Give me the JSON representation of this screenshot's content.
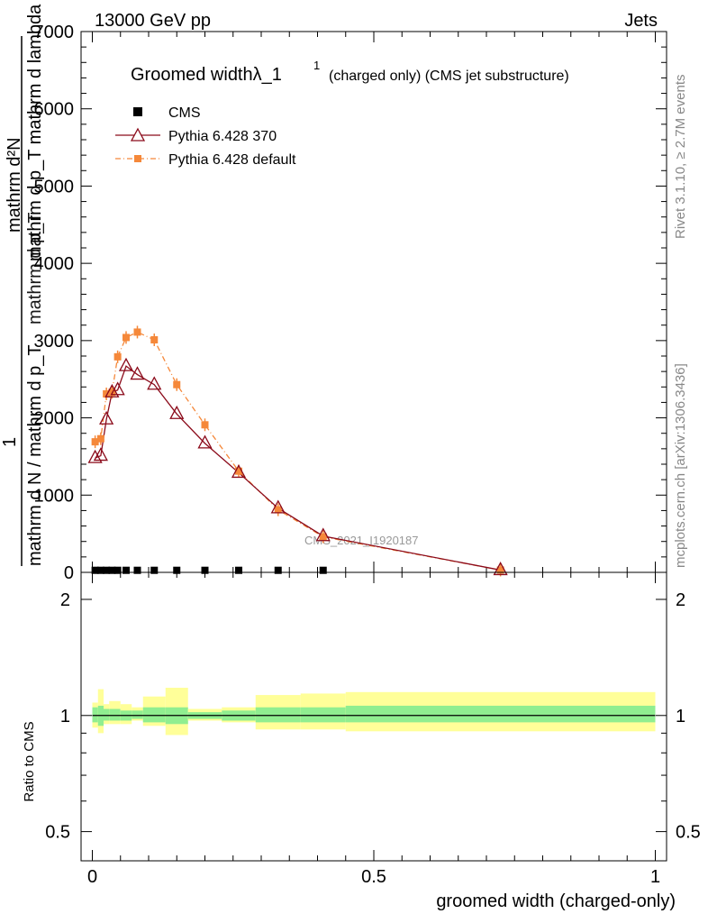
{
  "header": {
    "energy_label": "13000 GeV pp",
    "category_label": "Jets"
  },
  "side_labels": {
    "rivet": "Rivet 3.1.10, ≥ 2.7M events",
    "mcplots": "mcplots.cern.ch [arXiv:1306.3436]"
  },
  "ylabel_parts": {
    "numerator_one": "1",
    "denominator": "mathrm d N / mathrm d p_T",
    "stacked_top": "mathrm d²N",
    "stacked_bottom": "mathrm d p_T mathrm d lambda",
    "overlap_a": "mathrm d p_T mathrm d lambda",
    "overlap_b": "mathrm d p_T"
  },
  "watermark": "CMS_2021_I1920187",
  "colors": {
    "cms": "#000000",
    "pythia370": "#8b0a1a",
    "pythia_default": "#f5883a",
    "band_inner": "#90ee90",
    "band_outer": "#ffff99"
  },
  "chart_data": [
    {
      "type": "line",
      "title": "Groomed widthλ_1¹ (charged only) (CMS jet substructure)",
      "title_main": "Groomed widthλ_1",
      "title_sup": "1",
      "title_rest": "(charged only) (CMS jet substructure)",
      "ylim": [
        0,
        7000
      ],
      "xlim": [
        -0.02,
        1.02
      ],
      "y_ticks": [
        0,
        1000,
        2000,
        3000,
        4000,
        5000,
        6000,
        7000
      ],
      "y_tick_labels": [
        "0",
        "1000",
        "2000",
        "3000",
        "4000",
        "5000",
        "6000",
        "7000"
      ],
      "legend_position": "top-left",
      "series": [
        {
          "name": "CMS",
          "marker": "square",
          "x": [
            0.005,
            0.015,
            0.025,
            0.035,
            0.045,
            0.06,
            0.08,
            0.11,
            0.15,
            0.2,
            0.26,
            0.33,
            0.41
          ],
          "values": [
            15,
            15,
            15,
            15,
            15,
            15,
            15,
            15,
            15,
            15,
            15,
            15,
            15
          ]
        },
        {
          "name": "Pythia 6.428 370",
          "marker": "open-triangle",
          "x": [
            0.005,
            0.015,
            0.025,
            0.035,
            0.045,
            0.06,
            0.08,
            0.11,
            0.15,
            0.2,
            0.26,
            0.33,
            0.41,
            0.725
          ],
          "values": [
            1480,
            1510,
            1980,
            2330,
            2360,
            2670,
            2560,
            2430,
            2050,
            1670,
            1290,
            830,
            470,
            30
          ]
        },
        {
          "name": "Pythia 6.428 default",
          "marker": "filled-square-dashdot",
          "x": [
            0.005,
            0.015,
            0.025,
            0.035,
            0.045,
            0.06,
            0.08,
            0.11,
            0.15,
            0.2,
            0.26,
            0.33,
            0.41,
            0.725
          ],
          "values": [
            1690,
            1730,
            2310,
            2330,
            2790,
            3040,
            3110,
            3010,
            2430,
            1910,
            1310,
            810,
            460,
            30
          ]
        }
      ]
    },
    {
      "type": "area",
      "ylabel": "Ratio to CMS",
      "xlabel": "groomed width (charged-only)",
      "x_ticks": [
        0,
        0.5,
        1
      ],
      "x_tick_labels": [
        "0",
        "0.5",
        "1"
      ],
      "y_ticks": [
        0.5,
        1,
        2
      ],
      "y_tick_labels": [
        "0.5",
        "1",
        "2"
      ],
      "y_scale": "log",
      "ylim": [
        0.42,
        2.35
      ],
      "bins": [
        {
          "lo": 0.0,
          "hi": 0.01,
          "inner": [
            0.96,
            1.05
          ],
          "outer": [
            0.93,
            1.08
          ]
        },
        {
          "lo": 0.01,
          "hi": 0.02,
          "inner": [
            0.94,
            1.06
          ],
          "outer": [
            0.9,
            1.17
          ]
        },
        {
          "lo": 0.02,
          "hi": 0.03,
          "inner": [
            0.97,
            1.04
          ],
          "outer": [
            0.95,
            1.07
          ]
        },
        {
          "lo": 0.03,
          "hi": 0.04,
          "inner": [
            0.97,
            1.04
          ],
          "outer": [
            0.95,
            1.09
          ]
        },
        {
          "lo": 0.04,
          "hi": 0.05,
          "inner": [
            0.97,
            1.04
          ],
          "outer": [
            0.95,
            1.09
          ]
        },
        {
          "lo": 0.05,
          "hi": 0.07,
          "inner": [
            0.97,
            1.03
          ],
          "outer": [
            0.95,
            1.07
          ]
        },
        {
          "lo": 0.07,
          "hi": 0.09,
          "inner": [
            0.98,
            1.03
          ],
          "outer": [
            0.97,
            1.05
          ]
        },
        {
          "lo": 0.09,
          "hi": 0.13,
          "inner": [
            0.96,
            1.05
          ],
          "outer": [
            0.94,
            1.12
          ]
        },
        {
          "lo": 0.13,
          "hi": 0.17,
          "inner": [
            0.95,
            1.05
          ],
          "outer": [
            0.89,
            1.18
          ]
        },
        {
          "lo": 0.17,
          "hi": 0.23,
          "inner": [
            0.98,
            1.02
          ],
          "outer": [
            0.97,
            1.04
          ]
        },
        {
          "lo": 0.23,
          "hi": 0.29,
          "inner": [
            0.97,
            1.03
          ],
          "outer": [
            0.96,
            1.05
          ]
        },
        {
          "lo": 0.29,
          "hi": 0.37,
          "inner": [
            0.96,
            1.05
          ],
          "outer": [
            0.92,
            1.13
          ]
        },
        {
          "lo": 0.37,
          "hi": 0.45,
          "inner": [
            0.96,
            1.05
          ],
          "outer": [
            0.92,
            1.14
          ]
        },
        {
          "lo": 0.45,
          "hi": 1.0,
          "inner": [
            0.96,
            1.06
          ],
          "outer": [
            0.91,
            1.15
          ]
        }
      ],
      "reference_line": 1
    }
  ]
}
